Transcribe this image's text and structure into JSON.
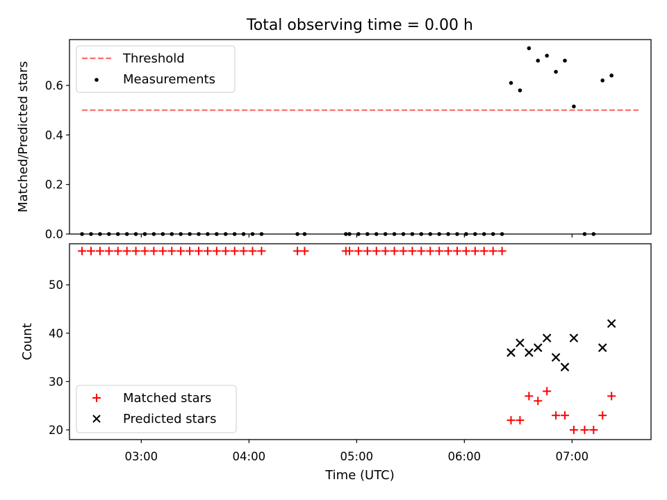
{
  "figure_title": "Total observing time = 0.00 h",
  "colors": {
    "threshold": "#ff6b6b",
    "matched": "#ff0000",
    "measure": "#000000",
    "predicted": "#000000"
  },
  "chart_data": [
    {
      "type": "scatter",
      "title": "Total observing time = 0.00 h",
      "xlabel": "",
      "ylabel": "Matched/Predicted stars",
      "xlim": [
        "02:20",
        "07:44"
      ],
      "ylim": [
        0,
        0.785
      ],
      "yticks": [
        0.0,
        0.2,
        0.4,
        0.6
      ],
      "ytick_labels": [
        "0.0",
        "0.2",
        "0.4",
        "0.6"
      ],
      "legend": {
        "position": "top-left",
        "entries": [
          "Threshold",
          "Measurements"
        ]
      },
      "threshold": {
        "name": "Threshold",
        "value": 0.5,
        "x_range": [
          "02:27",
          "07:37"
        ],
        "style": "dashed"
      },
      "series": [
        {
          "name": "Measurements",
          "marker": "dot",
          "points": [
            [
              "02:27",
              0
            ],
            [
              "02:32",
              0
            ],
            [
              "02:37",
              0
            ],
            [
              "02:42",
              0
            ],
            [
              "02:47",
              0
            ],
            [
              "02:52",
              0
            ],
            [
              "02:57",
              0
            ],
            [
              "03:02",
              0
            ],
            [
              "03:07",
              0
            ],
            [
              "03:12",
              0
            ],
            [
              "03:17",
              0
            ],
            [
              "03:22",
              0
            ],
            [
              "03:27",
              0
            ],
            [
              "03:32",
              0
            ],
            [
              "03:37",
              0
            ],
            [
              "03:42",
              0
            ],
            [
              "03:47",
              0
            ],
            [
              "03:52",
              0
            ],
            [
              "03:57",
              0
            ],
            [
              "04:02",
              0
            ],
            [
              "04:07",
              0
            ],
            [
              "04:27",
              0
            ],
            [
              "04:31",
              0
            ],
            [
              "04:54",
              0
            ],
            [
              "04:56",
              0
            ],
            [
              "05:01",
              0
            ],
            [
              "05:06",
              0
            ],
            [
              "05:11",
              0
            ],
            [
              "05:16",
              0
            ],
            [
              "05:21",
              0
            ],
            [
              "05:26",
              0
            ],
            [
              "05:31",
              0
            ],
            [
              "05:36",
              0
            ],
            [
              "05:41",
              0
            ],
            [
              "05:46",
              0
            ],
            [
              "05:51",
              0
            ],
            [
              "05:56",
              0
            ],
            [
              "06:01",
              0
            ],
            [
              "06:06",
              0
            ],
            [
              "06:11",
              0
            ],
            [
              "06:16",
              0
            ],
            [
              "06:21",
              0
            ],
            [
              "06:26",
              0.61
            ],
            [
              "06:31",
              0.58
            ],
            [
              "06:36",
              0.75
            ],
            [
              "06:41",
              0.7
            ],
            [
              "06:46",
              0.72
            ],
            [
              "06:51",
              0.655
            ],
            [
              "06:56",
              0.7
            ],
            [
              "07:01",
              0.515
            ],
            [
              "07:07",
              0
            ],
            [
              "07:12",
              0
            ],
            [
              "07:17",
              0.62
            ],
            [
              "07:22",
              0.64
            ]
          ]
        }
      ]
    },
    {
      "type": "scatter",
      "title": "",
      "xlabel": "Time (UTC)",
      "ylabel": "Count",
      "xlim": [
        "02:20",
        "07:44"
      ],
      "ylim": [
        18,
        58.5
      ],
      "yticks": [
        20,
        30,
        40,
        50
      ],
      "ytick_labels": [
        "20",
        "30",
        "40",
        "50"
      ],
      "xticks": [
        "03:00",
        "04:00",
        "05:00",
        "06:00",
        "07:00"
      ],
      "legend": {
        "position": "bottom-left",
        "entries": [
          "Matched stars",
          "Predicted stars"
        ]
      },
      "series": [
        {
          "name": "Matched stars",
          "marker": "plus",
          "points": [
            [
              "02:27",
              57
            ],
            [
              "02:32",
              57
            ],
            [
              "02:37",
              57
            ],
            [
              "02:42",
              57
            ],
            [
              "02:47",
              57
            ],
            [
              "02:52",
              57
            ],
            [
              "02:57",
              57
            ],
            [
              "03:02",
              57
            ],
            [
              "03:07",
              57
            ],
            [
              "03:12",
              57
            ],
            [
              "03:17",
              57
            ],
            [
              "03:22",
              57
            ],
            [
              "03:27",
              57
            ],
            [
              "03:32",
              57
            ],
            [
              "03:37",
              57
            ],
            [
              "03:42",
              57
            ],
            [
              "03:47",
              57
            ],
            [
              "03:52",
              57
            ],
            [
              "03:57",
              57
            ],
            [
              "04:02",
              57
            ],
            [
              "04:07",
              57
            ],
            [
              "04:27",
              57
            ],
            [
              "04:31",
              57
            ],
            [
              "04:54",
              57
            ],
            [
              "04:56",
              57
            ],
            [
              "05:01",
              57
            ],
            [
              "05:06",
              57
            ],
            [
              "05:11",
              57
            ],
            [
              "05:16",
              57
            ],
            [
              "05:21",
              57
            ],
            [
              "05:26",
              57
            ],
            [
              "05:31",
              57
            ],
            [
              "05:36",
              57
            ],
            [
              "05:41",
              57
            ],
            [
              "05:46",
              57
            ],
            [
              "05:51",
              57
            ],
            [
              "05:56",
              57
            ],
            [
              "06:01",
              57
            ],
            [
              "06:06",
              57
            ],
            [
              "06:11",
              57
            ],
            [
              "06:16",
              57
            ],
            [
              "06:21",
              57
            ],
            [
              "06:26",
              22
            ],
            [
              "06:31",
              22
            ],
            [
              "06:36",
              27
            ],
            [
              "06:41",
              26
            ],
            [
              "06:46",
              28
            ],
            [
              "06:51",
              23
            ],
            [
              "06:56",
              23
            ],
            [
              "07:01",
              20
            ],
            [
              "07:07",
              20
            ],
            [
              "07:12",
              20
            ],
            [
              "07:17",
              23
            ],
            [
              "07:22",
              27
            ]
          ]
        },
        {
          "name": "Predicted stars",
          "marker": "x",
          "points": [
            [
              "06:26",
              36
            ],
            [
              "06:31",
              38
            ],
            [
              "06:36",
              36
            ],
            [
              "06:41",
              37
            ],
            [
              "06:46",
              39
            ],
            [
              "06:51",
              35
            ],
            [
              "06:56",
              33
            ],
            [
              "07:01",
              39
            ],
            [
              "07:17",
              37
            ],
            [
              "07:22",
              42
            ]
          ]
        }
      ]
    }
  ]
}
